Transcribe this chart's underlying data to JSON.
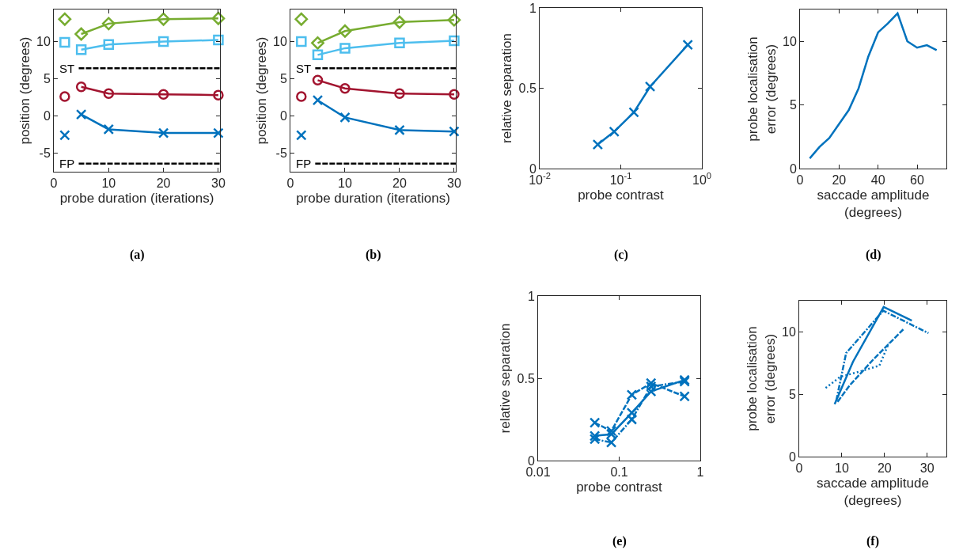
{
  "chart_data": [
    {
      "type": "line",
      "xlabel": "probe duration (iterations)",
      "ylabel": "position (degrees)",
      "xlim": [
        0,
        30.3
      ],
      "xticks": [
        0,
        10,
        20,
        30
      ],
      "ylim": [
        -7.5,
        14.3
      ],
      "yticks": [
        -5,
        0,
        5,
        10
      ],
      "annotations": [
        "(a)"
      ],
      "ref_lines": [
        {
          "axis": "y",
          "value": 6.4,
          "label": "ST",
          "color": "#000000",
          "line_style": "dashed"
        },
        {
          "axis": "y",
          "value": -6.4,
          "label": "FP",
          "color": "#000000",
          "line_style": "dashed"
        }
      ],
      "series": [
        {
          "type": "scatter",
          "color": "#77ac30",
          "marker": "diamond",
          "x": [
            2
          ],
          "values": [
            13.0
          ]
        },
        {
          "color": "#77ac30",
          "marker": "diamond",
          "x": [
            5,
            10,
            20,
            30
          ],
          "values": [
            11.0,
            12.4,
            13.0,
            13.1
          ]
        },
        {
          "type": "scatter",
          "color": "#4dbeee",
          "marker": "square",
          "x": [
            2
          ],
          "values": [
            9.9
          ]
        },
        {
          "color": "#4dbeee",
          "marker": "square",
          "x": [
            5,
            10,
            20,
            30
          ],
          "values": [
            8.9,
            9.6,
            10.0,
            10.2
          ]
        },
        {
          "type": "scatter",
          "color": "#a2142f",
          "marker": "circle",
          "x": [
            2
          ],
          "values": [
            2.6
          ]
        },
        {
          "color": "#a2142f",
          "marker": "circle",
          "x": [
            5,
            10,
            20,
            30
          ],
          "values": [
            3.9,
            3.0,
            2.9,
            2.8
          ]
        },
        {
          "type": "scatter",
          "color": "#0072bd",
          "marker": "cross",
          "x": [
            2
          ],
          "values": [
            -2.6
          ]
        },
        {
          "color": "#0072bd",
          "marker": "cross",
          "x": [
            5,
            10,
            20,
            30
          ],
          "values": [
            0.2,
            -1.8,
            -2.3,
            -2.3
          ]
        }
      ]
    },
    {
      "type": "line",
      "xlabel": "probe duration (iterations)",
      "ylabel": "position (degrees)",
      "xlim": [
        0,
        30.3
      ],
      "xticks": [
        0,
        10,
        20,
        30
      ],
      "ylim": [
        -7.5,
        14.3
      ],
      "yticks": [
        -5,
        0,
        5,
        10
      ],
      "annotations": [
        "(b)"
      ],
      "ref_lines": [
        {
          "axis": "y",
          "value": 6.4,
          "label": "ST",
          "color": "#000000",
          "line_style": "dashed"
        },
        {
          "axis": "y",
          "value": -6.4,
          "label": "FP",
          "color": "#000000",
          "line_style": "dashed"
        }
      ],
      "series": [
        {
          "type": "scatter",
          "color": "#77ac30",
          "marker": "diamond",
          "x": [
            2
          ],
          "values": [
            13.0
          ]
        },
        {
          "color": "#77ac30",
          "marker": "diamond",
          "x": [
            5,
            10,
            20,
            30
          ],
          "values": [
            9.8,
            11.4,
            12.6,
            12.9
          ]
        },
        {
          "type": "scatter",
          "color": "#4dbeee",
          "marker": "square",
          "x": [
            2
          ],
          "values": [
            10.0
          ]
        },
        {
          "color": "#4dbeee",
          "marker": "square",
          "x": [
            5,
            10,
            20,
            30
          ],
          "values": [
            8.2,
            9.1,
            9.8,
            10.1
          ]
        },
        {
          "type": "scatter",
          "color": "#a2142f",
          "marker": "circle",
          "x": [
            2
          ],
          "values": [
            2.6
          ]
        },
        {
          "color": "#a2142f",
          "marker": "circle",
          "x": [
            5,
            10,
            20,
            30
          ],
          "values": [
            4.8,
            3.7,
            3.0,
            2.9
          ]
        },
        {
          "type": "scatter",
          "color": "#0072bd",
          "marker": "cross",
          "x": [
            2
          ],
          "values": [
            -2.6
          ]
        },
        {
          "color": "#0072bd",
          "marker": "cross",
          "x": [
            5,
            10,
            20,
            30
          ],
          "values": [
            2.1,
            -0.2,
            -1.9,
            -2.1
          ]
        }
      ]
    },
    {
      "type": "line",
      "xlabel": "probe contrast",
      "ylabel": "relative separation",
      "log": "x",
      "marker": "cross",
      "xlim": [
        0.01,
        1
      ],
      "xticks": [
        {
          "value": 0.01,
          "label": "10$^{-2}$"
        },
        {
          "value": 0.1,
          "label": "10$^{-1}$"
        },
        {
          "value": 1,
          "label": "10$^{0}$"
        }
      ],
      "ylim": [
        0,
        1
      ],
      "yticks": [
        0,
        0.5,
        1
      ],
      "annotations": [
        "(c)"
      ],
      "series": [
        {
          "color": "#0072bd",
          "x": [
            0.052,
            0.083,
            0.145,
            0.23,
            0.67
          ],
          "values": [
            0.15,
            0.23,
            0.35,
            0.51,
            0.77
          ]
        }
      ]
    },
    {
      "type": "line",
      "xlabel": "saccade amplitude\n(degrees)",
      "ylabel": "probe localisation\nerror (degrees)",
      "xlim": [
        0,
        75
      ],
      "xticks": [
        0,
        20,
        40,
        60
      ],
      "ylim": [
        0,
        12.5
      ],
      "yticks": [
        0,
        5,
        10
      ],
      "annotations": [
        "(d)"
      ],
      "series": [
        {
          "color": "#0072bd",
          "x": [
            5,
            10,
            15,
            20,
            25,
            30,
            35,
            40,
            45,
            50,
            55,
            60,
            65,
            70
          ],
          "values": [
            0.8,
            1.7,
            2.4,
            3.5,
            4.6,
            6.3,
            8.8,
            10.7,
            11.4,
            12.2,
            10.0,
            9.5,
            9.7,
            9.3
          ]
        }
      ]
    },
    {
      "type": "line",
      "xlabel": "probe contrast",
      "ylabel": "relative separation",
      "log": "x",
      "marker": "cross",
      "xlim": [
        0.01,
        1
      ],
      "xticks": [
        0.01,
        0.1,
        1
      ],
      "ylim": [
        0,
        1
      ],
      "yticks": [
        0,
        0.5,
        1
      ],
      "annotations": [
        "(e)"
      ],
      "series": [
        {
          "color": "#0072bd",
          "line_style": "solid",
          "x": [
            0.05,
            0.08,
            0.143,
            0.247,
            0.64
          ],
          "values": [
            0.15,
            0.16,
            0.29,
            0.42,
            0.49
          ]
        },
        {
          "color": "#0072bd",
          "line_style": "dashed",
          "x": [
            0.05,
            0.08,
            0.143,
            0.247,
            0.64
          ],
          "values": [
            0.23,
            0.18,
            0.4,
            0.47,
            0.39
          ]
        },
        {
          "color": "#0072bd",
          "line_style": "dashdot",
          "x": [
            0.05,
            0.08,
            0.143,
            0.247,
            0.64
          ],
          "values": [
            0.13,
            0.11,
            0.25,
            0.45,
            0.48
          ]
        }
      ]
    },
    {
      "type": "line",
      "xlabel": "saccade amplitude\n(degrees)",
      "ylabel": "probe localisation\nerror (degrees)",
      "xlim": [
        0,
        34.5
      ],
      "xticks": [
        0,
        10,
        20,
        30
      ],
      "ylim": [
        0,
        12.5
      ],
      "yticks": [
        0,
        5,
        10
      ],
      "annotations": [
        "(f)"
      ],
      "series": [
        {
          "color": "#0072bd",
          "line_style": "solid",
          "x": [
            8.3,
            12.6,
            19.8,
            26.4
          ],
          "values": [
            4.2,
            7.6,
            12.0,
            10.9
          ]
        },
        {
          "color": "#0072bd",
          "line_style": "dashdot",
          "x": [
            8.7,
            11,
            19.7,
            30.3
          ],
          "values": [
            4.5,
            8.3,
            11.7,
            9.9
          ]
        },
        {
          "color": "#0072bd",
          "line_style": "dashed",
          "x": [
            9,
            11.8,
            17.4,
            24.4
          ],
          "values": [
            4.4,
            5.7,
            7.8,
            10.2
          ]
        },
        {
          "color": "#0072bd",
          "line_style": "dotted",
          "x": [
            6.2,
            9.6,
            14,
            18.8,
            21
          ],
          "values": [
            5.5,
            6.4,
            6.8,
            7.3,
            9.1
          ]
        }
      ]
    }
  ]
}
